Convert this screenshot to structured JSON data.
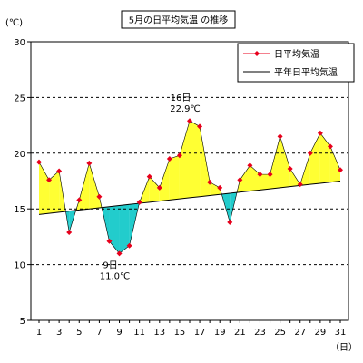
{
  "chart_data": {
    "type": "line",
    "title": "5月の日平均気温 の推移",
    "yunit": "(℃)",
    "xunit": "（日）",
    "ylim": [
      5,
      30
    ],
    "yticks": [
      5,
      10,
      15,
      20,
      25,
      30
    ],
    "dashed_grid": [
      10,
      15,
      20,
      25
    ],
    "x": [
      1,
      2,
      3,
      4,
      5,
      6,
      7,
      8,
      9,
      10,
      11,
      12,
      13,
      14,
      15,
      16,
      17,
      18,
      19,
      20,
      21,
      22,
      23,
      24,
      25,
      26,
      27,
      28,
      29,
      30,
      31
    ],
    "xticks": [
      1,
      3,
      5,
      7,
      9,
      11,
      13,
      15,
      17,
      19,
      21,
      23,
      25,
      27,
      29,
      31
    ],
    "series": [
      {
        "name": "日平均気温",
        "color": "#e8001c",
        "marker": "diamond",
        "values": [
          19.2,
          17.6,
          18.4,
          12.9,
          15.8,
          19.1,
          16.1,
          12.1,
          11.0,
          11.7,
          15.6,
          17.9,
          16.9,
          19.5,
          19.8,
          22.9,
          22.4,
          17.4,
          16.9,
          13.8,
          17.6,
          18.9,
          18.1,
          18.1,
          21.5,
          18.6,
          17.2,
          20.0,
          21.8,
          20.6,
          18.5
        ]
      },
      {
        "name": "平年日平均気温",
        "color": "#000000",
        "values": [
          14.5,
          14.6,
          14.7,
          14.8,
          14.9,
          15.0,
          15.1,
          15.2,
          15.3,
          15.4,
          15.5,
          15.6,
          15.7,
          15.8,
          15.9,
          16.0,
          16.1,
          16.2,
          16.3,
          16.4,
          16.5,
          16.6,
          16.7,
          16.8,
          16.9,
          17.0,
          17.1,
          17.2,
          17.3,
          17.4,
          17.5
        ]
      }
    ],
    "fill_above_color": "#ffff33",
    "fill_below_color": "#22cccc",
    "annotations": [
      {
        "day_label": "16日",
        "value_label": "22.9℃",
        "x": 16,
        "y": 22.9,
        "placement": "above"
      },
      {
        "day_label": "9日",
        "value_label": "11.0℃",
        "x": 9,
        "y": 11.0,
        "placement": "below"
      }
    ],
    "legend_placement": "top-right"
  }
}
